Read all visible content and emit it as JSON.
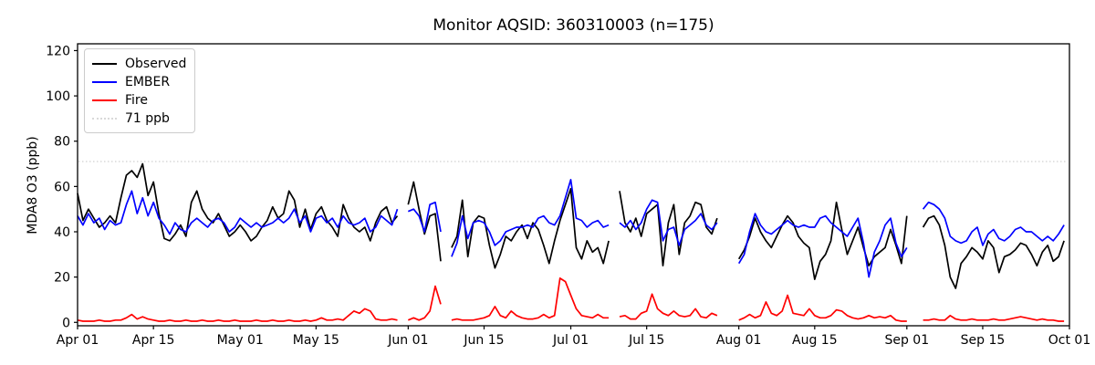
{
  "window": {
    "title": "Monitor AQSID: 360310003 (n=175)"
  },
  "legend": {
    "items": [
      {
        "label": "Observed",
        "color": "#000000",
        "dash": "solid"
      },
      {
        "label": "EMBER",
        "color": "#0000ff",
        "dash": "solid"
      },
      {
        "label": "Fire",
        "color": "#ff0000",
        "dash": "solid"
      },
      {
        "label": "71 ppb",
        "color": "#d9d9d9",
        "dash": "dotted"
      }
    ]
  },
  "chart_data": {
    "type": "line",
    "title": "Monitor AQSID: 360310003 (n=175)",
    "xlabel": "",
    "ylabel": "MDA8 O3 (ppb)",
    "ylim": [
      -1.5,
      123
    ],
    "yticks": [
      0,
      20,
      40,
      60,
      80,
      100,
      120
    ],
    "grid": false,
    "legend_position": "upper left",
    "x_total_days": 183,
    "x_tick_days": [
      0,
      14,
      30,
      44,
      61,
      75,
      91,
      105,
      122,
      136,
      153,
      167,
      183
    ],
    "x_tick_labels": [
      "Apr 01",
      "Apr 15",
      "May 01",
      "May 15",
      "Jun 01",
      "Jun 15",
      "Jul 01",
      "Jul 15",
      "Aug 01",
      "Aug 15",
      "Sep 01",
      "Sep 15",
      "Oct 01"
    ],
    "threshold": {
      "label": "71 ppb",
      "value": 71,
      "color": "#d9d9d9",
      "style": "dotted"
    },
    "series": [
      {
        "name": "Observed",
        "color": "#000000",
        "values": [
          57,
          45,
          50,
          46,
          42,
          44,
          47,
          44,
          55,
          65,
          67,
          64,
          70,
          56,
          62,
          48,
          37,
          36,
          39,
          43,
          38,
          53,
          58,
          50,
          46,
          44,
          48,
          43,
          38,
          40,
          43,
          40,
          36,
          38,
          42,
          45,
          51,
          46,
          48,
          58,
          54,
          42,
          50,
          41,
          48,
          51,
          45,
          42,
          38,
          52,
          46,
          42,
          40,
          42,
          36,
          44,
          49,
          51,
          44,
          47,
          null,
          52,
          62,
          50,
          39,
          47,
          48,
          27,
          null,
          33,
          38,
          54,
          29,
          44,
          47,
          46,
          34,
          24,
          30,
          38,
          36,
          40,
          43,
          37,
          44,
          41,
          34,
          26,
          36,
          45,
          52,
          59,
          33,
          28,
          36,
          31,
          33,
          26,
          36,
          null,
          58,
          44,
          40,
          46,
          38,
          48,
          50,
          52,
          25,
          44,
          52,
          30,
          44,
          47,
          53,
          52,
          42,
          39,
          46,
          null,
          null,
          null,
          28,
          32,
          38,
          46,
          40,
          36,
          33,
          38,
          43,
          47,
          44,
          38,
          35,
          33,
          19,
          27,
          30,
          36,
          53,
          41,
          30,
          36,
          42,
          33,
          25,
          29,
          31,
          33,
          41,
          34,
          26,
          47,
          null,
          null,
          42,
          46,
          47,
          43,
          34,
          20,
          15,
          26,
          29,
          33,
          31,
          28,
          36,
          33,
          22,
          29,
          30,
          32,
          35,
          34,
          30,
          25,
          31,
          34,
          27,
          29,
          36
        ]
      },
      {
        "name": "EMBER",
        "color": "#0000ff",
        "values": [
          47,
          43,
          48,
          44,
          46,
          41,
          45,
          43,
          44,
          52,
          58,
          48,
          55,
          47,
          53,
          46,
          43,
          39,
          44,
          41,
          40,
          44,
          46,
          44,
          42,
          45,
          46,
          44,
          40,
          42,
          46,
          44,
          42,
          44,
          42,
          43,
          44,
          46,
          44,
          46,
          50,
          44,
          47,
          40,
          46,
          47,
          44,
          46,
          42,
          47,
          44,
          43,
          44,
          46,
          40,
          42,
          47,
          45,
          43,
          50,
          null,
          49,
          50,
          47,
          40,
          52,
          53,
          40,
          null,
          29,
          35,
          47,
          37,
          44,
          45,
          44,
          40,
          34,
          36,
          40,
          41,
          42,
          42,
          43,
          42,
          46,
          47,
          44,
          43,
          47,
          55,
          63,
          46,
          45,
          42,
          44,
          45,
          42,
          43,
          null,
          44,
          42,
          45,
          41,
          44,
          50,
          54,
          53,
          36,
          41,
          42,
          34,
          41,
          43,
          45,
          48,
          43,
          41,
          44,
          null,
          null,
          null,
          26,
          30,
          40,
          48,
          43,
          40,
          39,
          41,
          43,
          45,
          43,
          42,
          43,
          42,
          42,
          46,
          47,
          44,
          42,
          40,
          38,
          42,
          46,
          35,
          20,
          31,
          36,
          43,
          46,
          35,
          29,
          33,
          null,
          null,
          50,
          53,
          52,
          50,
          46,
          38,
          36,
          35,
          36,
          40,
          42,
          34,
          39,
          41,
          37,
          36,
          38,
          41,
          42,
          40,
          40,
          38,
          36,
          38,
          36,
          39,
          43
        ]
      },
      {
        "name": "Fire",
        "color": "#ff0000",
        "values": [
          1,
          0.5,
          0.5,
          0.5,
          1,
          0.5,
          0.5,
          1,
          1,
          2,
          3.5,
          1.5,
          2.5,
          1.5,
          1,
          0.5,
          0.5,
          1,
          0.5,
          0.5,
          1,
          0.5,
          0.5,
          1,
          0.5,
          0.5,
          1,
          0.5,
          0.5,
          1,
          0.5,
          0.5,
          0.5,
          1,
          0.5,
          0.5,
          1,
          0.5,
          0.5,
          1,
          0.5,
          0.5,
          1,
          0.5,
          1,
          2,
          1,
          1,
          1.5,
          1,
          3,
          5,
          4,
          6,
          5,
          1.5,
          1,
          1,
          1.5,
          1,
          null,
          1,
          2,
          1,
          2,
          5,
          16,
          8,
          null,
          1,
          1.5,
          1,
          1,
          1,
          1.5,
          2,
          3,
          7,
          3,
          2,
          5,
          3,
          2,
          1.5,
          1.5,
          2,
          3.5,
          2,
          3,
          19.5,
          18,
          12,
          6,
          3,
          2.5,
          2,
          3.5,
          2,
          2,
          null,
          2.5,
          3,
          1.5,
          1.5,
          4,
          5,
          12.5,
          6,
          4,
          3,
          5,
          3,
          2.5,
          3,
          6,
          2.5,
          2,
          4,
          3,
          null,
          null,
          null,
          1,
          2,
          3.5,
          2,
          3,
          9,
          4,
          3,
          5,
          12,
          4,
          3.5,
          3,
          6,
          3,
          2,
          2,
          3,
          5.5,
          5,
          3,
          2,
          1.5,
          2,
          3,
          2,
          2.5,
          2,
          3,
          1,
          0.5,
          0.5,
          null,
          null,
          1,
          1,
          1.5,
          1,
          1,
          3,
          1.5,
          1,
          1,
          1.5,
          1,
          1,
          1,
          1.5,
          1,
          1,
          1.5,
          2,
          2.5,
          2,
          1.5,
          1,
          1.5,
          1,
          1,
          0.5,
          0.5
        ]
      }
    ]
  }
}
